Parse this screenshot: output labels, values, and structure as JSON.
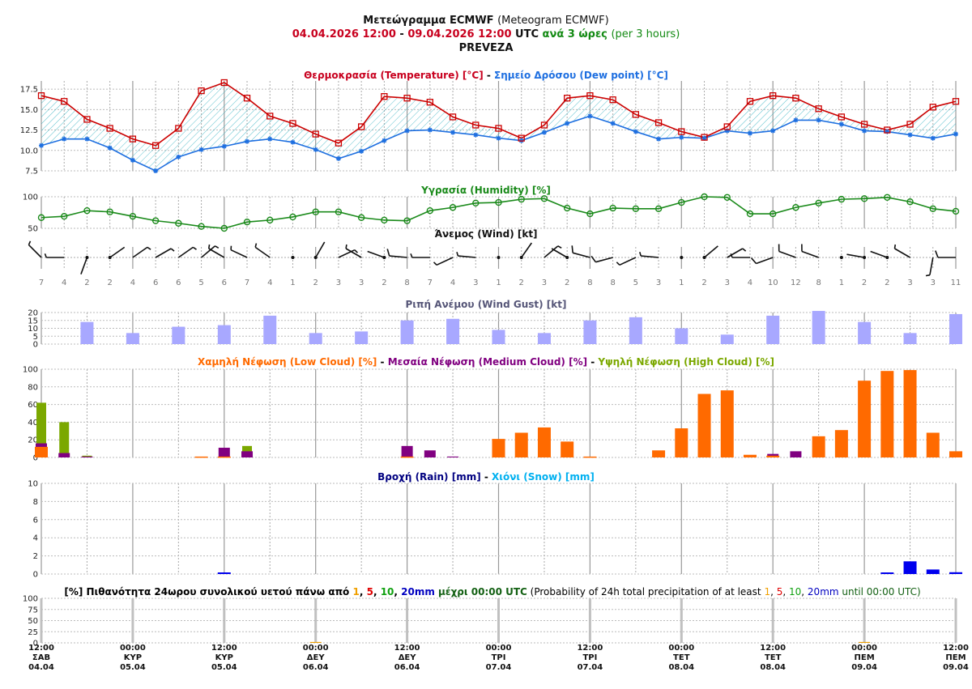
{
  "header": {
    "title_gr": "Μετεώγραμμα ECMWF",
    "title_en": "(Meteogram ECMWF)",
    "period_start": "04.04.2026 12:00",
    "period_sep": " - ",
    "period_end": "09.04.2026 12:00",
    "utc": "UTC",
    "step_gr": "ανά 3 ώρες",
    "step_en": "(per 3 hours)",
    "location": "PREVEZA"
  },
  "panels": {
    "temp": {
      "title_a": "Θερμοκρασία (Temperature) [°C]",
      "sep": " - ",
      "title_b": "Σημείο Δρόσου (Dew point) [°C]"
    },
    "humidity": {
      "title": "Υγρασία (Humidity) [%]"
    },
    "wind": {
      "title": "Άνεμος (Wind) [kt]"
    },
    "gust": {
      "title": "Ριπή Ανέμου (Wind Gust) [kt]"
    },
    "cloud": {
      "title_low": "Χαμηλή Νέφωση (Low Cloud) [%]",
      "title_med": "Μεσαία Νέφωση (Medium Cloud) [%]",
      "title_high": "Υψηλή Νέφωση (High Cloud) [%]",
      "sep": " - "
    },
    "rain": {
      "title_rain": "Βροχή (Rain) [mm]",
      "sep": " - ",
      "title_snow": "Χιόνι (Snow) [mm]"
    },
    "prob": {
      "pre": "[%] Πιθανότητα 24ωρου συνολικού υετού πάνω από ",
      "t1": "1",
      "t5": "5",
      "t10": "10",
      "t20": "20mm",
      "mid_gr": " μέχρι 00:00 UTC",
      "en_pre": " (Probability of 24h total precipitation of at least ",
      "en_post": " until 00:00 UTC)",
      "comma": ", "
    }
  },
  "colors": {
    "temp": "#cc0000",
    "dew": "#1e6fe0",
    "humidity": "#1a8a1a",
    "gust": "#a8a8ff",
    "low_cloud": "#ff6a00",
    "med_cloud": "#800080",
    "high_cloud": "#7ba800",
    "rain": "#0000ee",
    "snow": "#00b0f0",
    "p1": "#f0a000",
    "p5": "#e00000",
    "p10": "#10a010",
    "p20": "#0000c0"
  },
  "chart_data": [
    {
      "type": "line",
      "title": "Θερμοκρασία (Temperature) [°C] - Σημείο Δρόσου (Dew point) [°C]",
      "x_step_hours": 3,
      "ylim": [
        7.5,
        18.5
      ],
      "yticks": [
        "7.5",
        "10.0",
        "12.5",
        "15.0",
        "17.5"
      ],
      "series": [
        {
          "name": "Temperature",
          "values": [
            16.7,
            16.0,
            13.8,
            12.7,
            11.4,
            10.6,
            12.7,
            17.3,
            18.3,
            16.4,
            14.2,
            13.3,
            12.0,
            10.9,
            12.9,
            16.6,
            16.4,
            15.9,
            14.1,
            13.1,
            12.7,
            11.5,
            13.1,
            16.4,
            16.7,
            16.2,
            14.4,
            13.4,
            12.3,
            11.6,
            12.9,
            16.0,
            16.7,
            16.4,
            15.1,
            14.1,
            13.2,
            12.5,
            13.2,
            15.3,
            16.0
          ]
        },
        {
          "name": "Dew point",
          "values": [
            10.6,
            11.4,
            11.4,
            10.3,
            8.8,
            7.5,
            9.2,
            10.1,
            10.5,
            11.1,
            11.4,
            11.0,
            10.1,
            9.0,
            9.9,
            11.2,
            12.4,
            12.5,
            12.2,
            11.9,
            11.5,
            11.2,
            12.2,
            13.3,
            14.2,
            13.3,
            12.3,
            11.4,
            11.6,
            11.5,
            12.4,
            12.1,
            12.4,
            13.7,
            13.7,
            13.2,
            12.4,
            12.3,
            11.9,
            11.5,
            12.0
          ]
        }
      ]
    },
    {
      "type": "line",
      "title": "Υγρασία (Humidity) [%]",
      "ylim": [
        50,
        100
      ],
      "yticks": [
        "50",
        "100"
      ],
      "series": [
        {
          "name": "Humidity",
          "values": [
            67,
            69,
            78,
            76,
            69,
            62,
            58,
            53,
            50,
            60,
            63,
            68,
            76,
            76,
            67,
            63,
            62,
            78,
            83,
            90,
            91,
            96,
            97,
            82,
            73,
            82,
            81,
            81,
            91,
            100,
            99,
            73,
            73,
            83,
            90,
            96,
            97,
            99,
            92,
            81,
            77
          ]
        }
      ]
    },
    {
      "type": "scatter",
      "title": "Άνεμος (Wind) [kt]",
      "series": [
        {
          "name": "Speed",
          "values": [
            7,
            4,
            2,
            2,
            4,
            6,
            6,
            5,
            6,
            7,
            4,
            1,
            2,
            3,
            3,
            2,
            8,
            7,
            4,
            3,
            1,
            2,
            3,
            2,
            8,
            8,
            5,
            3,
            1,
            2,
            3,
            4,
            10,
            12,
            8,
            1,
            2,
            2,
            3,
            3,
            11
          ]
        },
        {
          "name": "Direction",
          "values": [
            315,
            270,
            200,
            55,
            55,
            60,
            55,
            50,
            300,
            295,
            305,
            0,
            30,
            65,
            300,
            290,
            275,
            270,
            245,
            275,
            0,
            35,
            50,
            300,
            285,
            255,
            245,
            275,
            0,
            50,
            60,
            270,
            250,
            290,
            290,
            0,
            280,
            290,
            300,
            190,
            270
          ]
        }
      ]
    },
    {
      "type": "bar",
      "title": "Ριπή Ανέμου (Wind Gust) [kt]",
      "x_step_hours": 6,
      "ylim": [
        0,
        20
      ],
      "yticks": [
        "0",
        "5",
        "10",
        "15",
        "20"
      ],
      "values": [
        14,
        7,
        11,
        12,
        18,
        7,
        8,
        15,
        16,
        9,
        7,
        15,
        17,
        10,
        6,
        18,
        21,
        14,
        7,
        19
      ]
    },
    {
      "type": "bar",
      "title": "Χαμηλή Νέφωση (Low Cloud) [%] - Μεσαία Νέφωση (Medium Cloud) [%] - Υψηλή Νέφωση (High Cloud) [%]",
      "ylim": [
        0,
        100
      ],
      "yticks": [
        "0",
        "20",
        "40",
        "60",
        "80",
        "100"
      ],
      "series": [
        {
          "name": "High Cloud",
          "values": [
            62,
            40,
            2,
            0,
            0,
            0,
            0,
            0,
            0,
            13,
            0,
            0,
            0,
            0,
            0,
            0,
            0,
            0,
            0,
            0,
            0,
            0,
            0,
            0,
            0,
            0,
            0,
            0,
            0,
            0,
            0,
            0,
            0,
            0,
            0,
            0,
            0,
            0,
            0,
            0,
            0
          ]
        },
        {
          "name": "Medium Cloud",
          "values": [
            16,
            5,
            1,
            0,
            0,
            0,
            0,
            0,
            11,
            7,
            0,
            0,
            0,
            0,
            0,
            0,
            13,
            8,
            1,
            0,
            0,
            0,
            0,
            0,
            0,
            0,
            0,
            0,
            0,
            0,
            0,
            0,
            4,
            7,
            0,
            0,
            0,
            0,
            0,
            0,
            0
          ]
        },
        {
          "name": "Low Cloud",
          "values": [
            12,
            0,
            0,
            0,
            0,
            0,
            0,
            1,
            1,
            0,
            0,
            0,
            0,
            0,
            0,
            0,
            1,
            0,
            0,
            0,
            21,
            28,
            34,
            18,
            1,
            0,
            0,
            8,
            33,
            72,
            76,
            3,
            2,
            0,
            24,
            31,
            87,
            98,
            99,
            28,
            7
          ]
        }
      ]
    },
    {
      "type": "bar",
      "title": "Βροχή (Rain) [mm] - Χιόνι (Snow) [mm]",
      "ylim": [
        0,
        10
      ],
      "yticks": [
        "0",
        "2",
        "4",
        "6",
        "8",
        "10"
      ],
      "series": [
        {
          "name": "Rain",
          "values": [
            0,
            0,
            0,
            0,
            0,
            0,
            0,
            0,
            0.1,
            0,
            0,
            0,
            0,
            0,
            0,
            0,
            0,
            0,
            0,
            0,
            0,
            0,
            0,
            0,
            0,
            0,
            0,
            0,
            0,
            0,
            0,
            0,
            0,
            0,
            0,
            0,
            0,
            0.1,
            1.4,
            0.5,
            0.2
          ]
        },
        {
          "name": "Snow",
          "values": []
        }
      ]
    },
    {
      "type": "bar",
      "title": "Probability of 24h total precipitation of at least 1, 5, 10, 20mm until 00:00 UTC",
      "ylim": [
        0,
        100
      ],
      "yticks": [
        "0",
        "25",
        "50",
        "75",
        "100"
      ],
      "categories": [
        "06.04 00:00",
        "09.04 00:00"
      ],
      "series": [
        {
          "name": "1mm",
          "values": [
            2,
            2
          ]
        }
      ]
    }
  ],
  "x_axis": [
    {
      "time": "12:00",
      "day": "ΣΑΒ",
      "date": "04.04"
    },
    {
      "time": "00:00",
      "day": "ΚΥΡ",
      "date": "05.04"
    },
    {
      "time": "12:00",
      "day": "ΚΥΡ",
      "date": "05.04"
    },
    {
      "time": "00:00",
      "day": "ΔΕΥ",
      "date": "06.04"
    },
    {
      "time": "12:00",
      "day": "ΔΕΥ",
      "date": "06.04"
    },
    {
      "time": "00:00",
      "day": "ΤΡΙ",
      "date": "07.04"
    },
    {
      "time": "12:00",
      "day": "ΤΡΙ",
      "date": "07.04"
    },
    {
      "time": "00:00",
      "day": "ΤΕΤ",
      "date": "08.04"
    },
    {
      "time": "12:00",
      "day": "ΤΕΤ",
      "date": "08.04"
    },
    {
      "time": "00:00",
      "day": "ΠΕΜ",
      "date": "09.04"
    },
    {
      "time": "12:00",
      "day": "ΠΕΜ",
      "date": "09.04"
    }
  ]
}
